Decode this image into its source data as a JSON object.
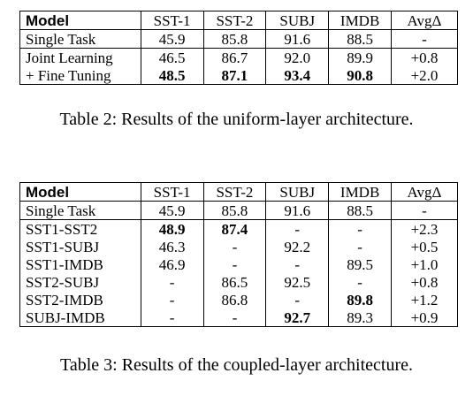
{
  "table2": {
    "headers": [
      "Model",
      "SST-1",
      "SST-2",
      "SUBJ",
      "IMDB",
      "AvgΔ"
    ],
    "rows": [
      [
        "Single Task",
        "45.9",
        "85.8",
        "91.6",
        "88.5",
        "-"
      ],
      [
        "Joint Learning",
        "46.5",
        "86.7",
        "92.0",
        "89.9",
        "+0.8"
      ],
      [
        "+ Fine Tuning",
        "48.5",
        "87.1",
        "93.4",
        "90.8",
        "+2.0"
      ]
    ],
    "caption": "Table 2: Results of the uniform-layer architecture."
  },
  "table3": {
    "headers": [
      "Model",
      "SST-1",
      "SST-2",
      "SUBJ",
      "IMDB",
      "AvgΔ"
    ],
    "rows": [
      [
        "Single Task",
        "45.9",
        "85.8",
        "91.6",
        "88.5",
        "-"
      ],
      [
        "SST1-SST2",
        "48.9",
        "87.4",
        "-",
        "-",
        "+2.3"
      ],
      [
        "SST1-SUBJ",
        "46.3",
        "-",
        "92.2",
        "-",
        "+0.5"
      ],
      [
        "SST1-IMDB",
        "46.9",
        "-",
        "-",
        "89.5",
        "+1.0"
      ],
      [
        "SST2-SUBJ",
        "-",
        "86.5",
        "92.5",
        "-",
        "+0.8"
      ],
      [
        "SST2-IMDB",
        "-",
        "86.8",
        "-",
        "89.8",
        "+1.2"
      ],
      [
        "SUBJ-IMDB",
        "-",
        "-",
        "92.7",
        "89.3",
        "+0.9"
      ]
    ],
    "caption": "Table 3: Results of the coupled-layer architecture."
  }
}
